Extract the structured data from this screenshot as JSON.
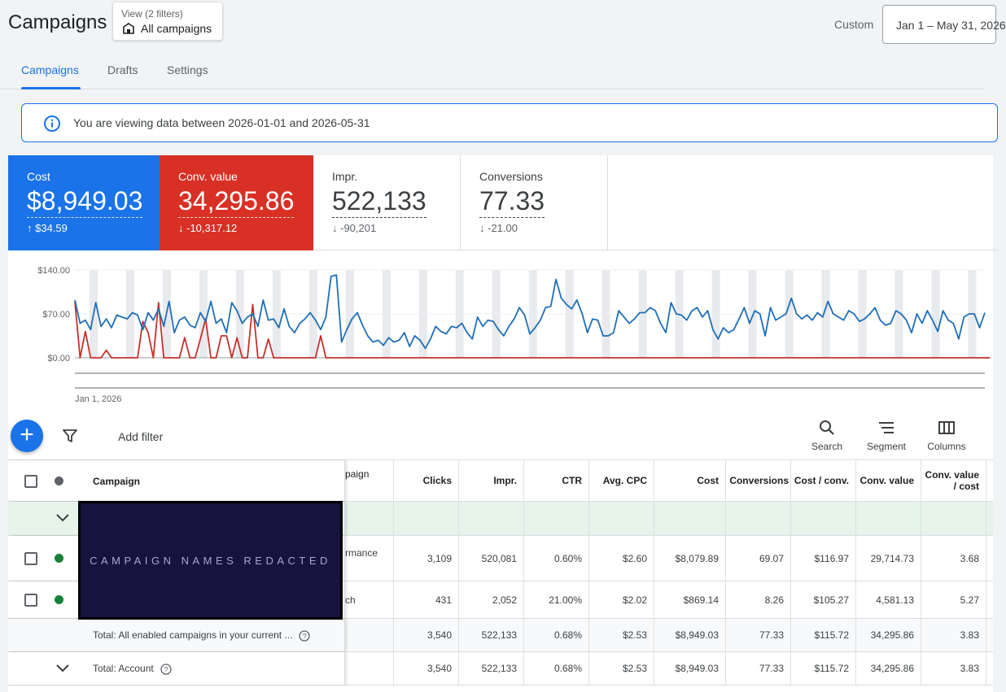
{
  "header": {
    "title": "Campaigns",
    "view_label": "View (2 filters)",
    "view_value": "All campaigns",
    "date_mode": "Custom",
    "date_range": "Jan 1 – May 31, 2026"
  },
  "tabs": [
    {
      "label": "Campaigns",
      "active": true
    },
    {
      "label": "Drafts",
      "active": false
    },
    {
      "label": "Settings",
      "active": false
    }
  ],
  "banner": {
    "text": "You are viewing data between 2026-01-01 and 2026-05-31"
  },
  "scorecards": [
    {
      "label": "Cost",
      "value": "$8,949.03",
      "delta": "$34.59",
      "direction": "up",
      "color": "#1a73e8"
    },
    {
      "label": "Conv. value",
      "value": "34,295.86",
      "delta": "-10,317.12",
      "direction": "down",
      "color": "#d93025"
    },
    {
      "label": "Impr.",
      "value": "522,133",
      "delta": "-90,201",
      "direction": "down"
    },
    {
      "label": "Conversions",
      "value": "77.33",
      "delta": "-21.00",
      "direction": "down"
    }
  ],
  "chart_data": {
    "type": "line",
    "x_start_label": "Jan 1, 2026",
    "y_ticks": [
      "$140.00",
      "$70.00",
      "$0.00"
    ],
    "ylim": [
      0,
      140
    ],
    "series": [
      {
        "color": "#1f6fb8",
        "values": [
          92,
          55,
          60,
          45,
          88,
          50,
          62,
          48,
          68,
          65,
          62,
          72,
          68,
          45,
          72,
          60,
          78,
          50,
          90,
          40,
          60,
          65,
          52,
          48,
          72,
          58,
          90,
          55,
          62,
          40,
          88,
          75,
          55,
          65,
          70,
          50,
          92,
          60,
          62,
          48,
          78,
          50,
          40,
          55,
          62,
          72,
          60,
          45,
          65,
          130,
          132,
          25,
          45,
          62,
          72,
          52,
          35,
          25,
          28,
          20,
          32,
          25,
          28,
          40,
          18,
          35,
          28,
          15,
          30,
          50,
          42,
          38,
          50,
          48,
          55,
          40,
          30,
          65,
          50,
          60,
          58,
          45,
          35,
          50,
          62,
          80,
          68,
          38,
          48,
          60,
          80,
          82,
          125,
          95,
          85,
          78,
          92,
          70,
          40,
          62,
          60,
          35,
          35,
          40,
          75,
          65,
          55,
          62,
          72,
          72,
          80,
          75,
          55,
          40,
          88,
          70,
          68,
          60,
          75,
          80,
          65,
          75,
          45,
          30,
          48,
          40,
          45,
          62,
          80,
          55,
          75,
          70,
          35,
          80,
          60,
          65,
          70,
          95,
          70,
          62,
          68,
          60,
          72,
          65,
          90,
          70,
          65,
          60,
          75,
          70,
          58,
          62,
          70,
          80,
          60,
          52,
          55,
          75,
          70,
          60,
          40,
          70,
          55,
          75,
          60,
          42,
          75,
          60,
          55,
          30,
          65,
          70,
          70,
          48,
          72
        ]
      },
      {
        "color": "#c5322c",
        "values": [
          90,
          0,
          42,
          0,
          0,
          0,
          12,
          0,
          0,
          0,
          0,
          0,
          0,
          58,
          40,
          0,
          88,
          0,
          0,
          0,
          0,
          32,
          0,
          0,
          30,
          62,
          0,
          0,
          35,
          35,
          0,
          32,
          0,
          0,
          85,
          0,
          0,
          30,
          0,
          0,
          0,
          0,
          0,
          0,
          0,
          0,
          0,
          35,
          0,
          0,
          0,
          0,
          0,
          0,
          0,
          0,
          0,
          0,
          0,
          0,
          0,
          0,
          0,
          0,
          0,
          0,
          0,
          0,
          0,
          0,
          0,
          0,
          0,
          0,
          0,
          0,
          0,
          0,
          0,
          0,
          0,
          0,
          0,
          0,
          0,
          0,
          0,
          0,
          0,
          0,
          0,
          0,
          0,
          0,
          0,
          0,
          0,
          0,
          0,
          0,
          0,
          0,
          0,
          0,
          0,
          0,
          0,
          0,
          0,
          0,
          0,
          0,
          0,
          0,
          0,
          0,
          0,
          0,
          0,
          0,
          0,
          0,
          0,
          0,
          0,
          0,
          0,
          0,
          0,
          0,
          0,
          0,
          0,
          0,
          0,
          0,
          0,
          0,
          0,
          0,
          0,
          0,
          0,
          0,
          0,
          0,
          0,
          0,
          0,
          0,
          0,
          0,
          0,
          0,
          0,
          0,
          0,
          0,
          0,
          0,
          0,
          0,
          0,
          0,
          0,
          0,
          0,
          0,
          0,
          0,
          0,
          0,
          0,
          0,
          0,
          0
        ]
      }
    ]
  },
  "toolbar": {
    "add_filter": "Add filter",
    "search": "Search",
    "segment": "Segment",
    "columns": "Columns"
  },
  "table": {
    "headers": {
      "campaign": "Campaign",
      "campaign_type_partial": "paign",
      "clicks": "Clicks",
      "impr": "Impr.",
      "ctr": "CTR",
      "avg_cpc": "Avg. CPC",
      "cost": "Cost",
      "conversions": "Conversions",
      "cost_conv": "Cost / conv.",
      "conv_value": "Conv. value",
      "conv_value_cost": "Conv. value / cost"
    },
    "redaction_label": "CAMPAIGN NAMES REDACTED",
    "rows": [
      {
        "status_color": "#188038",
        "type_partial": "rmance",
        "clicks": "3,109",
        "impr": "520,081",
        "ctr": "0.60%",
        "avg_cpc": "$2.60",
        "cost": "$8,079.89",
        "conversions": "69.07",
        "cost_conv": "$116.97",
        "conv_value": "29,714.73",
        "conv_value_cost": "3.68"
      },
      {
        "status_color": "#188038",
        "type_partial": "ch",
        "clicks": "431",
        "impr": "2,052",
        "ctr": "21.00%",
        "avg_cpc": "$2.02",
        "cost": "$869.14",
        "conversions": "8.26",
        "cost_conv": "$105.27",
        "conv_value": "4,581.13",
        "conv_value_cost": "5.27"
      }
    ],
    "totals": [
      {
        "label": "Total: All enabled campaigns in your current ...",
        "clicks": "3,540",
        "impr": "522,133",
        "ctr": "0.68%",
        "avg_cpc": "$2.53",
        "cost": "$8,949.03",
        "conversions": "77.33",
        "cost_conv": "$115.72",
        "conv_value": "34,295.86",
        "conv_value_cost": "3.83"
      },
      {
        "label": "Total: Account",
        "clicks": "3,540",
        "impr": "522,133",
        "ctr": "0.68%",
        "avg_cpc": "$2.53",
        "cost": "$8,949.03",
        "conversions": "77.33",
        "cost_conv": "$115.72",
        "conv_value": "34,295.86",
        "conv_value_cost": "3.83"
      }
    ]
  }
}
